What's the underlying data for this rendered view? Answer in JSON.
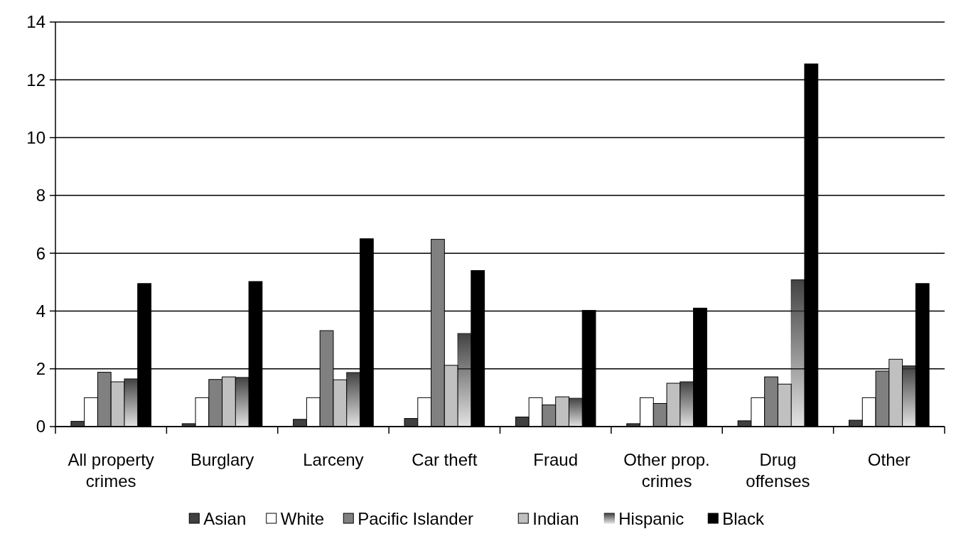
{
  "chart_data": {
    "type": "bar",
    "categories": [
      "All property crimes",
      "Burglary",
      "Larceny",
      "Car theft",
      "Fraud",
      "Other prop. crimes",
      "Drug offenses",
      "Other"
    ],
    "series": [
      {
        "name": "Asian",
        "color": "#404040",
        "values": [
          0.18,
          0.1,
          0.25,
          0.28,
          0.33,
          0.1,
          0.2,
          0.22
        ]
      },
      {
        "name": "White",
        "color": "#ffffff",
        "values": [
          1,
          1,
          1,
          1,
          1,
          1,
          1,
          1
        ]
      },
      {
        "name": "Pacific Islander",
        "color": "#808080",
        "values": [
          1.88,
          1.63,
          3.32,
          6.48,
          0.75,
          0.8,
          1.72,
          1.92
        ]
      },
      {
        "name": "Indian",
        "color": "#c0c0c0",
        "values": [
          1.55,
          1.72,
          1.62,
          2.12,
          1.03,
          1.5,
          1.47,
          2.33
        ]
      },
      {
        "name": "Hispanic",
        "color": "#333333",
        "values": [
          1.65,
          1.7,
          1.87,
          3.22,
          0.98,
          1.55,
          5.08,
          2.1
        ]
      },
      {
        "name": "Black",
        "color": "#000000",
        "values": [
          4.95,
          5.02,
          6.5,
          5.4,
          4.02,
          4.1,
          12.55,
          4.95
        ]
      }
    ],
    "ylim": [
      0,
      14
    ],
    "yticks": [
      0,
      2,
      4,
      6,
      8,
      10,
      12,
      14
    ],
    "grid": "y",
    "legend": "bottom"
  }
}
